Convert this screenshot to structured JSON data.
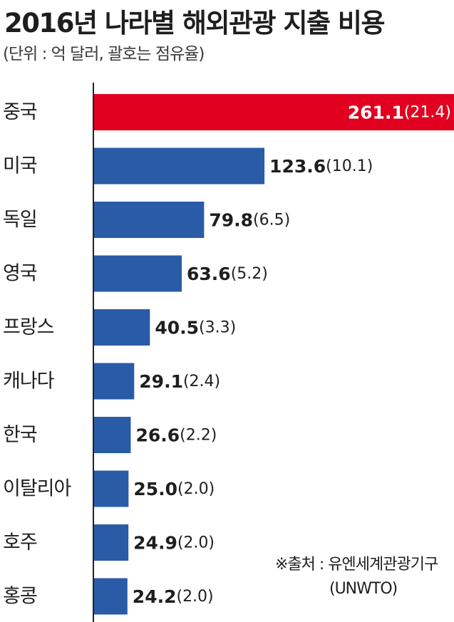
{
  "title": "2016년 나라별 해외관광 지출 비용",
  "subtitle": "(단위 : 억 달러, 괄호는 점유율)",
  "source": {
    "label": "※출처 : 유엔세계관광기구",
    "org": "(UNWTO)"
  },
  "colors": {
    "highlight": "#e1001f",
    "bar": "#2a5ba6",
    "text": "#1e1e1e",
    "axis": "#222222"
  },
  "chart_data": {
    "type": "bar",
    "orientation": "horizontal",
    "title": "2016년 나라별 해외관광 지출 비용",
    "subtitle": "(단위 : 억 달러, 괄호는 점유율)",
    "categories": [
      "중국",
      "미국",
      "독일",
      "영국",
      "프랑스",
      "캐나다",
      "한국",
      "이탈리아",
      "호주",
      "홍콩"
    ],
    "values": [
      261.1,
      123.6,
      79.8,
      63.6,
      40.5,
      29.1,
      26.6,
      25.0,
      24.9,
      24.2
    ],
    "value_labels": [
      "261.1",
      "123.6",
      "79.8",
      "63.6",
      "40.5",
      "29.1",
      "26.6",
      "25.0",
      "24.9",
      "24.2"
    ],
    "shares": [
      "(21.4)",
      "(10.1)",
      "(6.5)",
      "(5.2)",
      "(3.3)",
      "(2.4)",
      "(2.2)",
      "(2.0)",
      "(2.0)",
      "(2.0)"
    ],
    "highlight_index": 0,
    "xlim": [
      0,
      261.1
    ],
    "grid": false,
    "legend": "none"
  }
}
